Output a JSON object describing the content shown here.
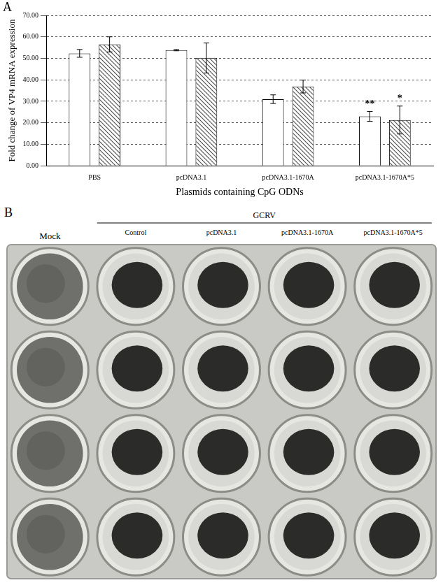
{
  "chart_data": {
    "type": "bar",
    "panel": "A",
    "x_label": "Plasmids containing CpG ODNs",
    "y_label": "Fold change of VP4 mRNA expression",
    "categories": [
      "PBS",
      "pcDNA3.1",
      "pcDNA3.1-1670A",
      "pcDNA3.1-1670A*5"
    ],
    "series": [
      {
        "color": "#ffffff",
        "values": [
          52.3,
          53.8,
          31.0,
          23.0
        ],
        "errors": [
          1.8,
          0.3,
          2.0,
          2.3
        ]
      },
      {
        "color": "#555555",
        "values": [
          56.5,
          50.2,
          36.9,
          21.3
        ],
        "errors": [
          3.5,
          7.0,
          3.0,
          6.5
        ]
      }
    ],
    "annotations": [
      {
        "text": "**",
        "category": "pcDNA3.1-1670A*5",
        "series": 0
      },
      {
        "text": "*",
        "category": "pcDNA3.1-1670A*5",
        "series": 1
      }
    ],
    "ylim": [
      0,
      70
    ],
    "yticks": [
      {
        "value": 0,
        "label": "0.00"
      },
      {
        "value": 10,
        "label": "10.00"
      },
      {
        "value": 20,
        "label": "20.00"
      },
      {
        "value": 30,
        "label": "30.00"
      },
      {
        "value": 40,
        "label": "40.00"
      },
      {
        "value": 50,
        "label": "50.00"
      },
      {
        "value": 60,
        "label": "60.00"
      },
      {
        "value": 70,
        "label": "70.00"
      }
    ],
    "grid": true
  },
  "panel_b": {
    "letter": "B",
    "mock": "Mock",
    "group": "GCRV",
    "columns": [
      "Control",
      "pcDNA3.1",
      "pcDNA3.1-1670A",
      "pcDNA3.1-1670A*5"
    ]
  }
}
